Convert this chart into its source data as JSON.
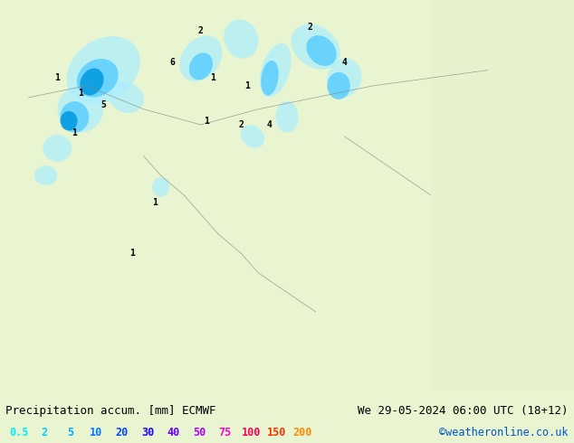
{
  "title_left": "Precipitation accum. [mm] ECMWF",
  "title_right": "We 29-05-2024 06:00 UTC (18+12)",
  "credit": "©weatheronline.co.uk",
  "legend_values": [
    "0.5",
    "2",
    "5",
    "10",
    "20",
    "30",
    "40",
    "50",
    "75",
    "100",
    "150",
    "200"
  ],
  "legend_colors": [
    "#00ffff",
    "#00d4ff",
    "#00aaff",
    "#0080ff",
    "#0055ff",
    "#002bff",
    "#5500ff",
    "#aa00ff",
    "#ff00aa",
    "#ff0055",
    "#ff2b00",
    "#ff8000"
  ],
  "bg_color": "#e8f5d0",
  "map_bg": "#e8f5d0",
  "water_color": "#b0e8f0",
  "land_border_color": "#888888",
  "bottom_bar_color": "#d8d8d8",
  "title_font_size": 9,
  "legend_font_size": 8.5,
  "credit_font_size": 8.5
}
